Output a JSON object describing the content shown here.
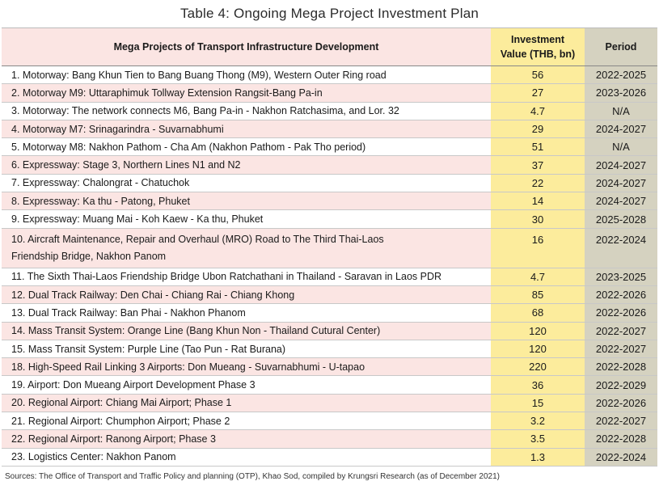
{
  "title": "Table 4: Ongoing Mega Project Investment Plan",
  "headers": {
    "project": "Mega Projects of Transport Infrastructure Development",
    "value_line1": "Investment",
    "value_line2": "Value (THB, bn)",
    "period": "Period"
  },
  "rows": [
    {
      "project": "1. Motorway: Bang Khun Tien to Bang Buang Thong (M9), Western Outer Ring road",
      "value": "56",
      "period": "2022-2025"
    },
    {
      "project": "2. Motorway M9: Uttaraphimuk Tollway Extension Rangsit-Bang Pa-in",
      "value": "27",
      "period": "2023-2026"
    },
    {
      "project": "3. Motorway: The network connects M6, Bang Pa-in - Nakhon Ratchasima, and Lor. 32",
      "value": "4.7",
      "period": "N/A"
    },
    {
      "project": "4. Motorway M7: Srinagarindra - Suvarnabhumi",
      "value": "29",
      "period": "2024-2027"
    },
    {
      "project": "5. Motorway M8: Nakhon Pathom - Cha Am (Nakhon Pathom - Pak Tho period)",
      "value": "51",
      "period": "N/A"
    },
    {
      "project": "6. Expressway: Stage 3, Northern Lines N1 and N2",
      "value": "37",
      "period": "2024-2027"
    },
    {
      "project": "7. Expressway: Chalongrat - Chatuchok",
      "value": "22",
      "period": "2024-2027"
    },
    {
      "project": "8. Expressway: Ka thu - Patong, Phuket",
      "value": "14",
      "period": "2024-2027"
    },
    {
      "project": "9. Expressway: Muang Mai - Koh Kaew - Ka thu, Phuket",
      "value": "30",
      "period": "2025-2028"
    },
    {
      "project": "10. Aircraft Maintenance, Repair and Overhaul (MRO) Road to The Third Thai-Laos Friendship Bridge, Nakhon Panom",
      "value": "16",
      "period": "2022-2024"
    },
    {
      "project": "11. The Sixth Thai-Laos Friendship Bridge Ubon Ratchathani in Thailand - Saravan in Laos PDR",
      "value": "4.7",
      "period": "2023-2025"
    },
    {
      "project": "12. Dual Track  Railway: Den Chai - Chiang Rai - Chiang Khong",
      "value": "85",
      "period": "2022-2026"
    },
    {
      "project": "13. Dual Track  Railway: Ban Phai - Nakhon Phanom",
      "value": "68",
      "period": "2022-2026"
    },
    {
      "project": "14. Mass Transit System: Orange Line (Bang Khun Non - Thailand Cutural Center)",
      "value": "120",
      "period": "2022-2027"
    },
    {
      "project": "15. Mass Transit System: Purple Line (Tao Pun - Rat Burana)",
      "value": "120",
      "period": "2022-2027"
    },
    {
      "project": "18. High-Speed Rail Linking 3 Airports: Don Mueang - Suvarnabhumi - U-tapao",
      "value": "220",
      "period": "2022-2028"
    },
    {
      "project": "19. Airport: Don Mueang Airport Development Phase 3",
      "value": "36",
      "period": "2022-2029"
    },
    {
      "project": "20. Regional Airport: Chiang Mai Airport; Phase 1",
      "value": "15",
      "period": "2022-2026"
    },
    {
      "project": "21. Regional Airport: Chumphon Airport; Phase 2",
      "value": "3.2",
      "period": "2022-2027"
    },
    {
      "project": "22. Regional Airport: Ranong Airport; Phase 3",
      "value": "3.5",
      "period": "2022-2028"
    },
    {
      "project": "23. Logistics Center: Nakhon Panom",
      "value": "1.3",
      "period": "2022-2024"
    }
  ],
  "source": "Sources: The Office of Transport and Traffic Policy and planning (OTP), Khao Sod, compiled by Krungsri Research (as of December 2021)"
}
